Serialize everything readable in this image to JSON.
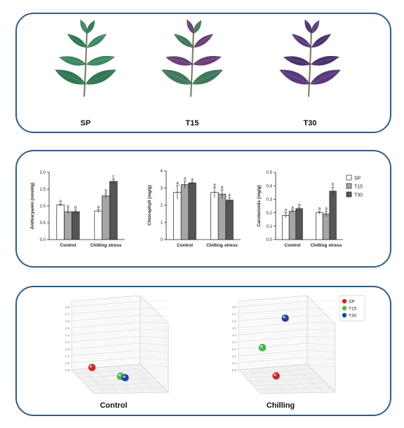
{
  "photos": {
    "labels": [
      "SP",
      "T15",
      "T30"
    ],
    "colors": {
      "SP": "#2f7a55",
      "T15_base": "#3d7a5c",
      "T15_tint": "#6a3f7a",
      "T30": "#5a3a7e"
    }
  },
  "chart_data": [
    {
      "type": "bar",
      "ylabel": "Anthocyanin (nmol/g)",
      "ylim": [
        0.0,
        2.0
      ],
      "yticks": [
        "0.0",
        "0.5",
        "1.0",
        "1.5",
        "2.0"
      ],
      "categories": [
        "Control",
        "Chilling stress"
      ],
      "series": [
        {
          "name": "SP",
          "values": [
            1.03,
            0.85
          ],
          "errors": [
            0.03,
            0.05
          ],
          "letters": [
            "a",
            "a"
          ]
        },
        {
          "name": "T15",
          "values": [
            0.83,
            1.3
          ],
          "errors": [
            0.07,
            0.08
          ],
          "letters": [
            "b",
            "b"
          ]
        },
        {
          "name": "T30",
          "values": [
            0.83,
            1.73
          ],
          "errors": [
            0.05,
            0.07
          ],
          "letters": [
            "b",
            "c"
          ]
        }
      ]
    },
    {
      "type": "bar",
      "ylabel": "Chlorophyll (mg/g)",
      "ylim": [
        0,
        4
      ],
      "yticks": [
        "0",
        "1",
        "2",
        "3",
        "4"
      ],
      "categories": [
        "Control",
        "Chilling stress"
      ],
      "series": [
        {
          "name": "SP",
          "values": [
            2.75,
            2.75
          ],
          "errors": [
            0.4,
            0.3
          ],
          "letters": [
            "a",
            "a"
          ]
        },
        {
          "name": "T15",
          "values": [
            3.2,
            2.65
          ],
          "errors": [
            0.2,
            0.25
          ],
          "letters": [
            "a",
            "a"
          ]
        },
        {
          "name": "T30",
          "values": [
            3.3,
            2.3
          ],
          "errors": [
            0.05,
            0.15
          ],
          "letters": [
            "a",
            "a"
          ]
        }
      ]
    },
    {
      "type": "bar",
      "ylabel": "Carotenoids (mg/g)",
      "ylim": [
        0.0,
        0.5
      ],
      "yticks": [
        "0.0",
        "0.1",
        "0.2",
        "0.3",
        "0.4",
        "0.5"
      ],
      "categories": [
        "Control",
        "Chilling stress"
      ],
      "series": [
        {
          "name": "SP",
          "values": [
            0.18,
            0.2
          ],
          "errors": [
            0.02,
            0.01
          ],
          "letters": [
            "a",
            "a"
          ]
        },
        {
          "name": "T15",
          "values": [
            0.21,
            0.19
          ],
          "errors": [
            0.01,
            0.02
          ],
          "letters": [
            "a",
            "a"
          ]
        },
        {
          "name": "T30",
          "values": [
            0.23,
            0.36
          ],
          "errors": [
            0.01,
            0.03
          ],
          "letters": [
            "a",
            "b"
          ]
        }
      ]
    },
    {
      "type": "scatter3d",
      "title": "Control",
      "zticks": [
        "0.9",
        "1.0",
        "1.1",
        "1.2",
        "1.3",
        "1.4",
        "1.5",
        "1.6",
        "1.7",
        "1.8"
      ],
      "points": [
        {
          "name": "SP",
          "color": "#e02020",
          "z": 1.02,
          "x": 0.2,
          "y": 0.3
        },
        {
          "name": "T15",
          "color": "#3cc43c",
          "z": 0.85,
          "x": 0.6,
          "y": 0.35
        },
        {
          "name": "T30",
          "color": "#2040b0",
          "z": 0.83,
          "x": 0.65,
          "y": 0.4
        }
      ]
    },
    {
      "type": "scatter3d",
      "title": "Chilling",
      "zticks": [
        "0.9",
        "1.0",
        "1.1",
        "1.2",
        "1.3",
        "1.4",
        "1.5",
        "1.6",
        "1.7",
        "1.8"
      ],
      "points": [
        {
          "name": "SP",
          "color": "#e02020",
          "z": 0.85,
          "x": 0.45,
          "y": 0.3
        },
        {
          "name": "T15",
          "color": "#3cc43c",
          "z": 1.3,
          "x": 0.25,
          "y": 0.3
        },
        {
          "name": "T30",
          "color": "#2040b0",
          "z": 1.73,
          "x": 0.55,
          "y": 0.4
        }
      ]
    }
  ],
  "legend": {
    "items": [
      {
        "name": "SP",
        "color": "#ffffff"
      },
      {
        "name": "T15",
        "color": "#a6a6a6"
      },
      {
        "name": "T30",
        "color": "#555555"
      }
    ]
  },
  "legend3d": {
    "items": [
      {
        "name": "SP",
        "color": "#e02020"
      },
      {
        "name": "T15",
        "color": "#3cc43c"
      },
      {
        "name": "T30",
        "color": "#2040b0"
      }
    ]
  }
}
